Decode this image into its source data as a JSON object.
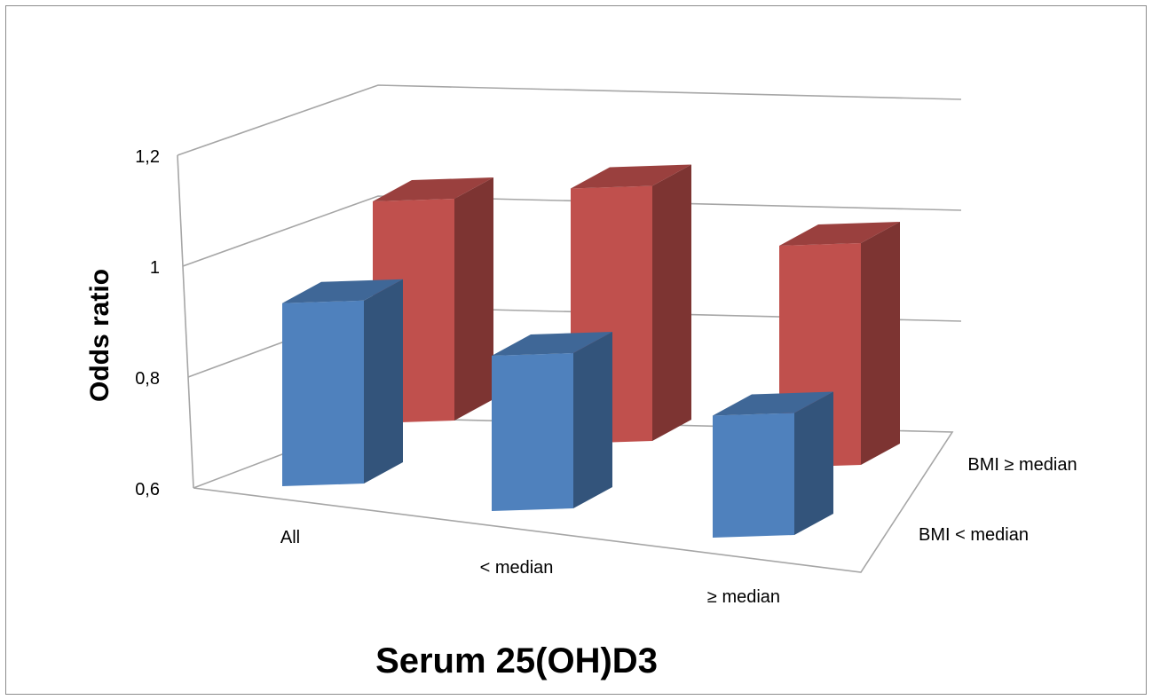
{
  "chart_data": {
    "type": "bar",
    "categories": [
      "All",
      "< median",
      "≥ median"
    ],
    "series": [
      {
        "name": "BMI < median",
        "values": [
          0.93,
          0.88,
          0.82
        ],
        "color": "#4f81bd"
      },
      {
        "name": "BMI ≥ median",
        "values": [
          1.0,
          1.06,
          1.0
        ],
        "color": "#c0504d"
      }
    ],
    "xlabel": "Serum 25(OH)D3",
    "ylabel": "Odds ratio",
    "ylim": [
      0.6,
      1.2
    ],
    "yticks": [
      "0,6",
      "0,8",
      "1",
      "1,2"
    ],
    "grid": true,
    "style": "3d-column"
  }
}
